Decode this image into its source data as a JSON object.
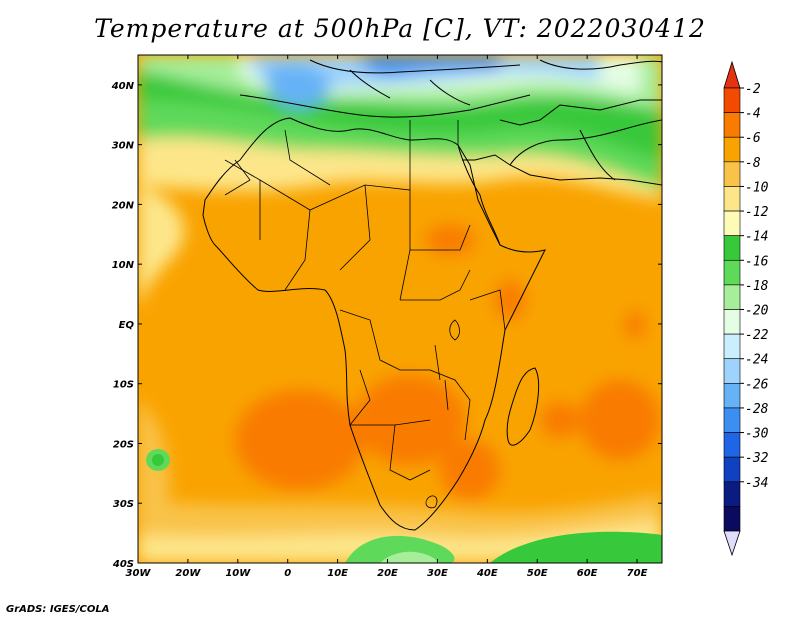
{
  "title": "Temperature at 500hPa [C], VT: 2022030412",
  "credit": "GrADS: IGES/COLA",
  "map": {
    "lon_range": [
      -30,
      75
    ],
    "lat_range": [
      -40,
      45
    ],
    "lon_ticks": [
      "30W",
      "20W",
      "10W",
      "0",
      "10E",
      "20E",
      "30E",
      "40E",
      "50E",
      "60E",
      "70E"
    ],
    "lat_ticks": [
      "40N",
      "30N",
      "20N",
      "10N",
      "EQ",
      "10S",
      "20S",
      "30S",
      "40S"
    ]
  },
  "colorbar": {
    "labels": [
      "-2",
      "-4",
      "-6",
      "-8",
      "-10",
      "-12",
      "-14",
      "-16",
      "-18",
      "-20",
      "-22",
      "-24",
      "-26",
      "-28",
      "-30",
      "-32",
      "-34"
    ],
    "colors": [
      "#f24a00",
      "#f97b00",
      "#f9a300",
      "#f9c349",
      "#fde68a",
      "#fefbb6",
      "#37c83b",
      "#5fd95a",
      "#a6ee9a",
      "#e4fde4",
      "#cbeefe",
      "#9dd3fc",
      "#66b2f6",
      "#3c8ff0",
      "#1f66e6",
      "#1041c0",
      "#0c1b82",
      "#0a0a5e"
    ],
    "top_arrow_color": "#e5320f",
    "bottom_arrow_color": "#e0dcfb"
  }
}
